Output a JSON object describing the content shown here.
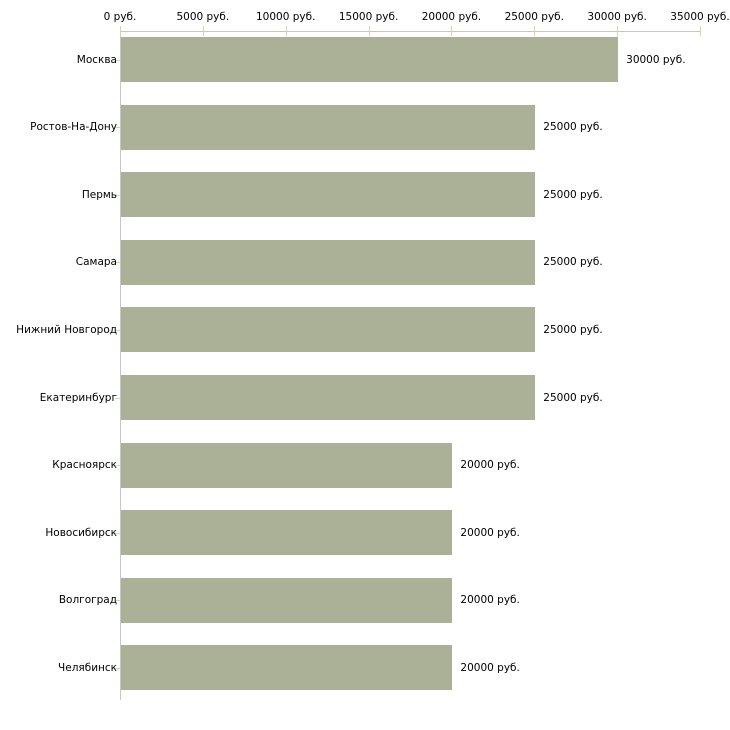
{
  "chart_data": {
    "type": "bar",
    "orientation": "horizontal",
    "title": "",
    "xlabel": "",
    "ylabel": "",
    "xlim": [
      0,
      35000
    ],
    "grid": false,
    "legend_position": "none",
    "x_ticks": [
      0,
      5000,
      10000,
      15000,
      20000,
      25000,
      30000,
      35000
    ],
    "x_tick_labels": [
      "0 руб.",
      "5000 руб.",
      "10000 руб.",
      "15000 руб.",
      "20000 руб.",
      "25000 руб.",
      "30000 руб.",
      "35000 руб."
    ],
    "categories": [
      "Москва",
      "Ростов-На-Дону",
      "Пермь",
      "Самара",
      "Нижний Новгород",
      "Екатеринбург",
      "Красноярск",
      "Новосибирск",
      "Волгоград",
      "Челябинск"
    ],
    "values": [
      30000,
      25000,
      25000,
      25000,
      25000,
      25000,
      20000,
      20000,
      20000,
      20000
    ],
    "value_labels": [
      "30000 руб.",
      "25000 руб.",
      "25000 руб.",
      "25000 руб.",
      "25000 руб.",
      "25000 руб.",
      "20000 руб.",
      "20000 руб.",
      "20000 руб.",
      "20000 руб."
    ],
    "colors": {
      "bar": "#abb196",
      "tick": "#d6d8ab",
      "axis": "#c6c6c6",
      "text": "#000000",
      "background": "#ffffff"
    }
  }
}
